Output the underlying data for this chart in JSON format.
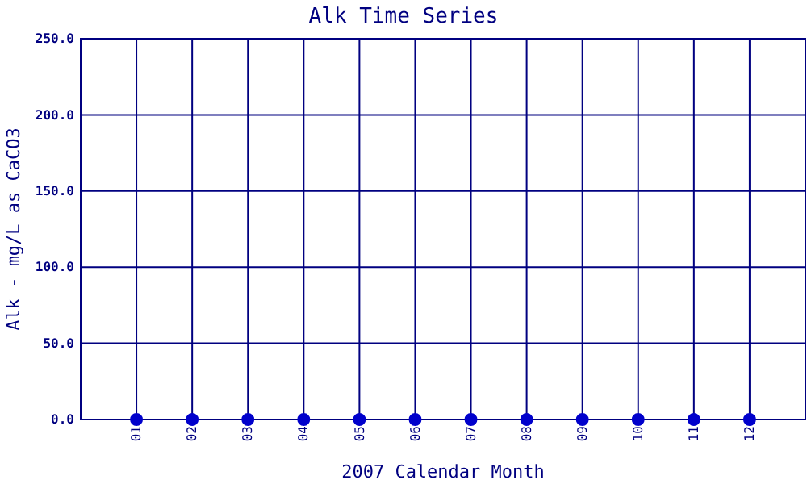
{
  "chart_data": {
    "type": "scatter",
    "title": "Alk Time Series",
    "xlabel": "2007 Calendar Month",
    "ylabel": "Alk - mg/L as CaCO3",
    "categories": [
      "01",
      "02",
      "03",
      "04",
      "05",
      "06",
      "07",
      "08",
      "09",
      "10",
      "11",
      "12"
    ],
    "values": [
      0,
      0,
      0,
      0,
      0,
      0,
      0,
      0,
      0,
      0,
      0,
      0
    ],
    "color": "#0000cc",
    "marker": "circle",
    "grid": true,
    "ylim": [
      0,
      250
    ],
    "yticks": [
      {
        "value": 0,
        "label": "0.0"
      },
      {
        "value": 50,
        "label": "50.0"
      },
      {
        "value": 100,
        "label": "100.0"
      },
      {
        "value": 150,
        "label": "150.0"
      },
      {
        "value": 200,
        "label": "200.0"
      },
      {
        "value": 250,
        "label": "250.0"
      }
    ]
  }
}
